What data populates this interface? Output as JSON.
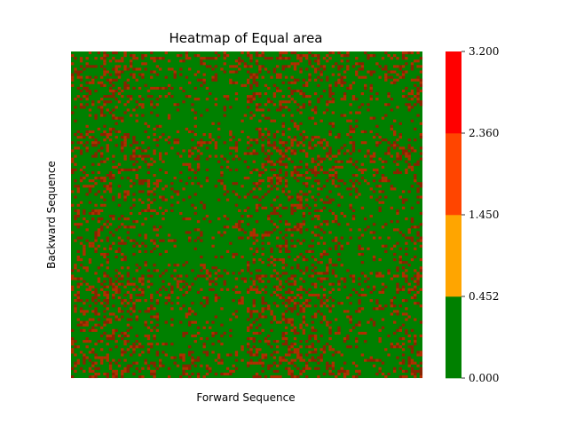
{
  "chart_data": {
    "type": "heatmap",
    "title": "Heatmap of Equal area",
    "xlabel": "Forward Sequence",
    "ylabel": "Backward Sequence",
    "x_tick_labels": [],
    "y_tick_labels": [],
    "grid": false,
    "grid_size": 120,
    "dominant_color": "#008000",
    "background_colors": {
      "dark_cells": "#8b2200",
      "red_cells": "#b22d00"
    },
    "colorbar": {
      "bounds": [
        0.0,
        0.452,
        1.45,
        2.36,
        3.2
      ],
      "tick_labels": [
        "0.000",
        "0.452",
        "1.450",
        "2.360",
        "3.200"
      ],
      "colors": [
        "#008000",
        "#ffa500",
        "#ff4500",
        "#ff0000"
      ]
    },
    "description_of_pattern": {
      "red_density_column_bands": [
        0.18,
        0.2,
        0.14,
        0.04,
        0.06,
        0.05,
        0.2,
        0.22,
        0.18,
        0.12,
        0.05,
        0.16
      ],
      "red_density_row_bands": [
        0.2,
        0.12,
        0.04,
        0.18,
        0.16,
        0.1,
        0.08,
        0.06,
        0.16,
        0.14,
        0.1,
        0.18
      ]
    }
  }
}
